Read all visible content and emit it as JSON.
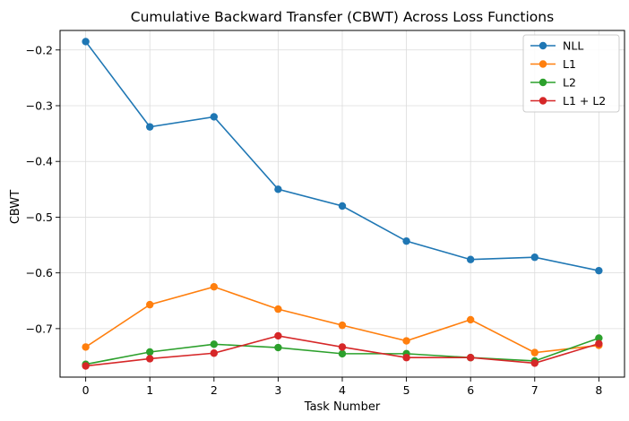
{
  "chart_data": {
    "type": "line",
    "title": "Cumulative Backward Transfer (CBWT) Across Loss Functions",
    "xlabel": "Task Number",
    "ylabel": "CBWT",
    "x": [
      0,
      1,
      2,
      3,
      4,
      5,
      6,
      7,
      8
    ],
    "xticks": [
      "0",
      "1",
      "2",
      "3",
      "4",
      "5",
      "6",
      "7",
      "8"
    ],
    "yticks": [
      -0.7,
      -0.6,
      -0.5,
      -0.4,
      -0.3,
      -0.2
    ],
    "ytick_labels": [
      "−0.7",
      "−0.6",
      "−0.5",
      "−0.4",
      "−0.3",
      "−0.2"
    ],
    "xlim": [
      -0.4,
      8.4
    ],
    "ylim": [
      -0.787,
      -0.165
    ],
    "grid": true,
    "legend_position": "top-right",
    "series": [
      {
        "name": "NLL",
        "color": "#1f77b4",
        "values": [
          -0.185,
          -0.338,
          -0.32,
          -0.45,
          -0.48,
          -0.543,
          -0.576,
          -0.572,
          -0.596
        ]
      },
      {
        "name": "L1",
        "color": "#ff7f0e",
        "values": [
          -0.733,
          -0.657,
          -0.625,
          -0.665,
          -0.694,
          -0.722,
          -0.684,
          -0.743,
          -0.73
        ]
      },
      {
        "name": "L2",
        "color": "#2ca02c",
        "values": [
          -0.764,
          -0.742,
          -0.728,
          -0.734,
          -0.745,
          -0.745,
          -0.752,
          -0.758,
          -0.717
        ]
      },
      {
        "name": "L1 + L2",
        "color": "#d62728",
        "values": [
          -0.767,
          -0.754,
          -0.744,
          -0.713,
          -0.733,
          -0.752,
          -0.752,
          -0.762,
          -0.727
        ]
      }
    ]
  }
}
